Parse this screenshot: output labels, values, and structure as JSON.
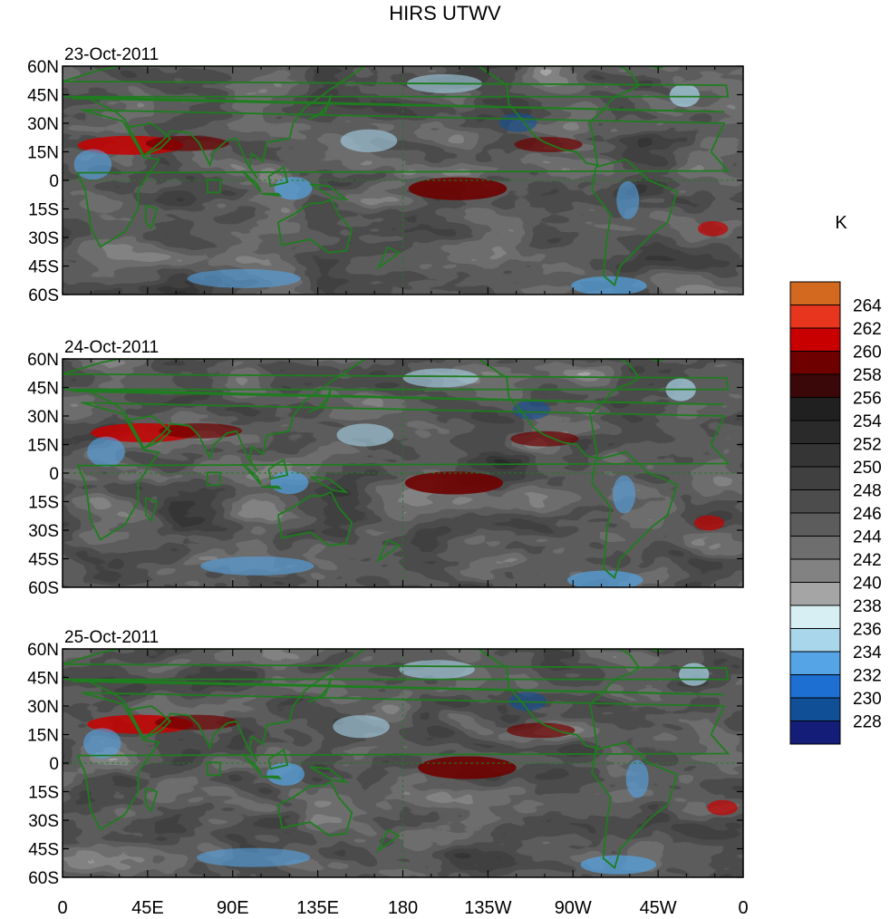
{
  "title": "HIRS UTWV",
  "chart_data": {
    "type": "heatmap",
    "title": "HIRS UTWV",
    "units": "K",
    "x_ticks": [
      "0",
      "45E",
      "90E",
      "135E",
      "180",
      "135W",
      "90W",
      "45W",
      "0"
    ],
    "y_ticks": [
      "60N",
      "45N",
      "30N",
      "15N",
      "0",
      "15S",
      "30S",
      "45S",
      "60S"
    ],
    "xlim": [
      0,
      360
    ],
    "ylim": [
      -60,
      60
    ],
    "panels": [
      {
        "date": "23-Oct-2011"
      },
      {
        "date": "24-Oct-2011"
      },
      {
        "date": "25-Oct-2011"
      }
    ],
    "colorbar": {
      "labels": [
        "264",
        "262",
        "260",
        "258",
        "256",
        "254",
        "252",
        "250",
        "248",
        "246",
        "244",
        "242",
        "240",
        "238",
        "236",
        "234",
        "232",
        "230",
        "228"
      ],
      "colors": [
        "#D2691E",
        "#E8351E",
        "#C80000",
        "#6E0000",
        "#3A0808",
        "#202020",
        "#2A2A2A",
        "#353535",
        "#404040",
        "#4C4C4C",
        "#5C5C5C",
        "#6E6E6E",
        "#828282",
        "#A5A5A5",
        "#D7EEF2",
        "#A9D6EA",
        "#55A5E6",
        "#1E6FD2",
        "#104E96",
        "#141E78"
      ]
    },
    "coastline_color": "#1E7D1E",
    "grid": false,
    "legend_position": "right"
  }
}
